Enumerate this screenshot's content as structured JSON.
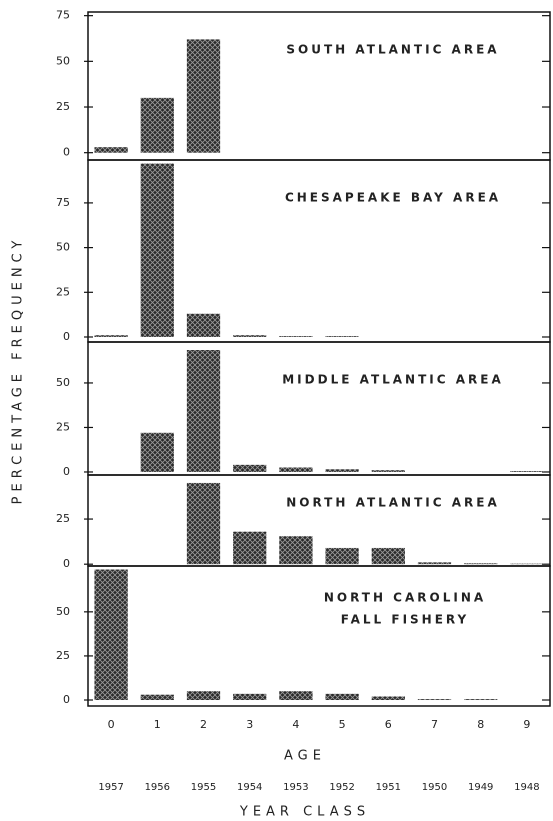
{
  "chart_data": [
    {
      "type": "bar",
      "title": [
        "SOUTH ATLANTIC AREA"
      ],
      "values": [
        3,
        30,
        62,
        0,
        0,
        0,
        0,
        0,
        0,
        0
      ],
      "color": "#2a2a2a",
      "ylim": [
        -4,
        77
      ],
      "yticks": [
        0,
        25,
        50,
        75
      ]
    },
    {
      "type": "bar",
      "title": [
        "CHESAPEAKE BAY AREA"
      ],
      "values": [
        1,
        97,
        13,
        1,
        0.5,
        0.5,
        0,
        0,
        0,
        0
      ],
      "color": "#2a2a2a",
      "ylim": [
        -2.8,
        99
      ],
      "yticks": [
        0,
        25,
        50,
        75
      ]
    },
    {
      "type": "bar",
      "title": [
        "MIDDLE ATLANTIC AREA"
      ],
      "values": [
        0,
        22,
        68.5,
        4,
        2.5,
        1.5,
        1,
        0,
        0,
        0.5
      ],
      "color": "#2a2a2a",
      "ylim": [
        -1.7,
        73
      ],
      "yticks": [
        0,
        25,
        50
      ]
    },
    {
      "type": "bar",
      "title": [
        "NORTH ATLANTIC AREA"
      ],
      "values": [
        0,
        0,
        45,
        18,
        15.5,
        9,
        9,
        1,
        0.5,
        0.3
      ],
      "color": "#2a2a2a",
      "ylim": [
        -1,
        49.4
      ],
      "yticks": [
        0,
        25
      ]
    },
    {
      "type": "bar",
      "title": [
        "NORTH CAROLINA",
        "FALL FISHERY"
      ],
      "values": [
        74,
        3,
        5,
        3.5,
        5,
        3.5,
        2,
        0.5,
        0.5,
        0
      ],
      "color": "#2a2a2a",
      "ylim": [
        -3.4,
        76
      ],
      "yticks": [
        0,
        25,
        50
      ]
    }
  ],
  "categories": [
    0,
    1,
    2,
    3,
    4,
    5,
    6,
    7,
    8,
    9
  ],
  "year_classes": [
    1957,
    1956,
    1955,
    1954,
    1953,
    1952,
    1951,
    1950,
    1949,
    1948
  ],
  "xlabel": "AGE",
  "x2label": "YEAR CLASS",
  "ylabel": "PERCENTAGE FREQUENCY"
}
